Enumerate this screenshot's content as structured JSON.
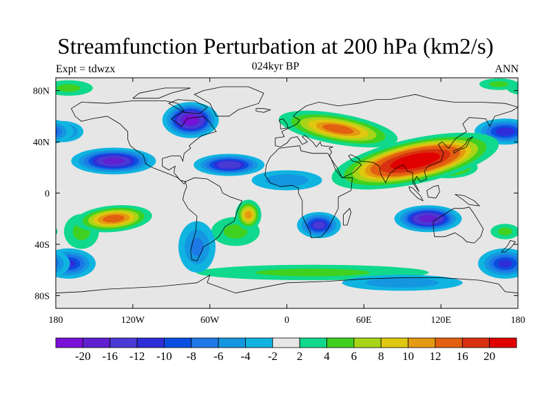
{
  "title": "Streamfunction Perturbation at 200 hPa (km2/s)",
  "left_label": "Expt = tdwzx",
  "center_label": "024kyr BP",
  "right_label": "ANN",
  "map": {
    "type": "filled-contour",
    "lon_range": [
      -180,
      180
    ],
    "lat_range": [
      -90,
      90
    ],
    "land_background": "#e6e6e6",
    "lon_ticks": [
      {
        "value": -180,
        "label": "180"
      },
      {
        "value": -120,
        "label": "120W"
      },
      {
        "value": -60,
        "label": "60W"
      },
      {
        "value": 0,
        "label": "0"
      },
      {
        "value": 60,
        "label": "60E"
      },
      {
        "value": 120,
        "label": "120E"
      },
      {
        "value": 180,
        "label": "180"
      }
    ],
    "lat_ticks": [
      {
        "value": 80,
        "label": "80N"
      },
      {
        "value": 40,
        "label": "40N"
      },
      {
        "value": 0,
        "label": "0"
      },
      {
        "value": -40,
        "label": "40S"
      },
      {
        "value": -80,
        "label": "80S"
      }
    ],
    "anomalies": [
      {
        "lon": 100,
        "lat": 25,
        "rx": 75,
        "ry": 20,
        "value": 24,
        "tilt": -12
      },
      {
        "lon": 40,
        "lat": 50,
        "rx": 55,
        "ry": 14,
        "value": 12,
        "tilt": 10
      },
      {
        "lon": 125,
        "lat": 20,
        "rx": 28,
        "ry": 10,
        "value": 10,
        "tilt": 0
      },
      {
        "lon": -135,
        "lat": -20,
        "rx": 35,
        "ry": 12,
        "value": 13,
        "tilt": -5
      },
      {
        "lon": -160,
        "lat": -30,
        "rx": 18,
        "ry": 18,
        "value": 4,
        "tilt": 0
      },
      {
        "lon": -30,
        "lat": -17,
        "rx": 12,
        "ry": 14,
        "value": 10,
        "tilt": 0
      },
      {
        "lon": -40,
        "lat": -30,
        "rx": 25,
        "ry": 15,
        "value": 4,
        "tilt": 0
      },
      {
        "lon": 20,
        "lat": -62,
        "rx": 120,
        "ry": 8,
        "value": 4,
        "tilt": 0
      },
      {
        "lon": -170,
        "lat": 82,
        "rx": 25,
        "ry": 8,
        "value": 4,
        "tilt": 0
      },
      {
        "lon": 165,
        "lat": 85,
        "rx": 20,
        "ry": 6,
        "value": 4,
        "tilt": 0
      },
      {
        "lon": 170,
        "lat": -30,
        "rx": 15,
        "ry": 8,
        "value": 4,
        "tilt": 0
      },
      {
        "lon": -75,
        "lat": 57,
        "rx": 25,
        "ry": 16,
        "value": -20,
        "tilt": 0
      },
      {
        "lon": -135,
        "lat": 25,
        "rx": 38,
        "ry": 12,
        "value": -16,
        "tilt": 0
      },
      {
        "lon": -45,
        "lat": 22,
        "rx": 32,
        "ry": 10,
        "value": -14,
        "tilt": 0
      },
      {
        "lon": 110,
        "lat": -20,
        "rx": 30,
        "ry": 12,
        "value": -18,
        "tilt": 0
      },
      {
        "lon": 25,
        "lat": -25,
        "rx": 20,
        "ry": 12,
        "value": -12,
        "tilt": 0
      },
      {
        "lon": 170,
        "lat": 48,
        "rx": 28,
        "ry": 12,
        "value": -11,
        "tilt": 0
      },
      {
        "lon": -170,
        "lat": -55,
        "rx": 25,
        "ry": 14,
        "value": -10,
        "tilt": 0
      },
      {
        "lon": -70,
        "lat": -42,
        "rx": 18,
        "ry": 25,
        "value": -6,
        "tilt": 0
      },
      {
        "lon": 170,
        "lat": -55,
        "rx": 25,
        "ry": 14,
        "value": -10,
        "tilt": 0
      },
      {
        "lon": -175,
        "lat": 48,
        "rx": 20,
        "ry": 10,
        "value": -8,
        "tilt": 0
      },
      {
        "lon": 0,
        "lat": 10,
        "rx": 35,
        "ry": 10,
        "value": -5,
        "tilt": 0
      },
      {
        "lon": 90,
        "lat": -70,
        "rx": 60,
        "ry": 8,
        "value": -5,
        "tilt": 0
      }
    ]
  },
  "colorbar": {
    "levels": [
      -20,
      -16,
      -12,
      -10,
      -8,
      -6,
      -4,
      -2,
      2,
      4,
      6,
      8,
      10,
      12,
      16,
      20
    ],
    "labels": [
      "-20",
      "-16",
      "-12",
      "-10",
      "-8",
      "-6",
      "-4",
      "-2",
      "2",
      "4",
      "6",
      "8",
      "10",
      "12",
      "16",
      "20"
    ],
    "colors": [
      "#7a10d8",
      "#6020d0",
      "#4a3ad4",
      "#2e2ed8",
      "#0a50e0",
      "#1e78e6",
      "#1496e0",
      "#10b4e0",
      "#e6e6e6",
      "#10d88c",
      "#40d020",
      "#a8d418",
      "#e0c810",
      "#e49a10",
      "#e26010",
      "#d83010",
      "#e00000"
    ]
  }
}
